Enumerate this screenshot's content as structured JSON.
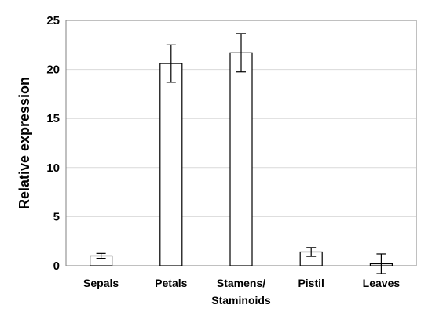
{
  "chart_data": {
    "type": "bar",
    "title": "",
    "xlabel": "",
    "ylabel": "Relative expression",
    "categories": [
      [
        "Sepals"
      ],
      [
        "Petals"
      ],
      [
        "Stamens/",
        "Staminoids"
      ],
      [
        "Pistil"
      ],
      [
        "Leaves"
      ]
    ],
    "values": [
      1.0,
      20.6,
      21.7,
      1.4,
      0.2
    ],
    "error": [
      0.25,
      1.9,
      1.95,
      0.45,
      1.0
    ],
    "ylim": [
      0,
      25
    ],
    "yticks": [
      0,
      5,
      10,
      15,
      20,
      25
    ],
    "grid": true,
    "legend": "none",
    "colors": {
      "bar_fill": "#ffffff",
      "bar_stroke": "#000000",
      "grid": "#d9d9d9",
      "frame": "#808080"
    }
  }
}
